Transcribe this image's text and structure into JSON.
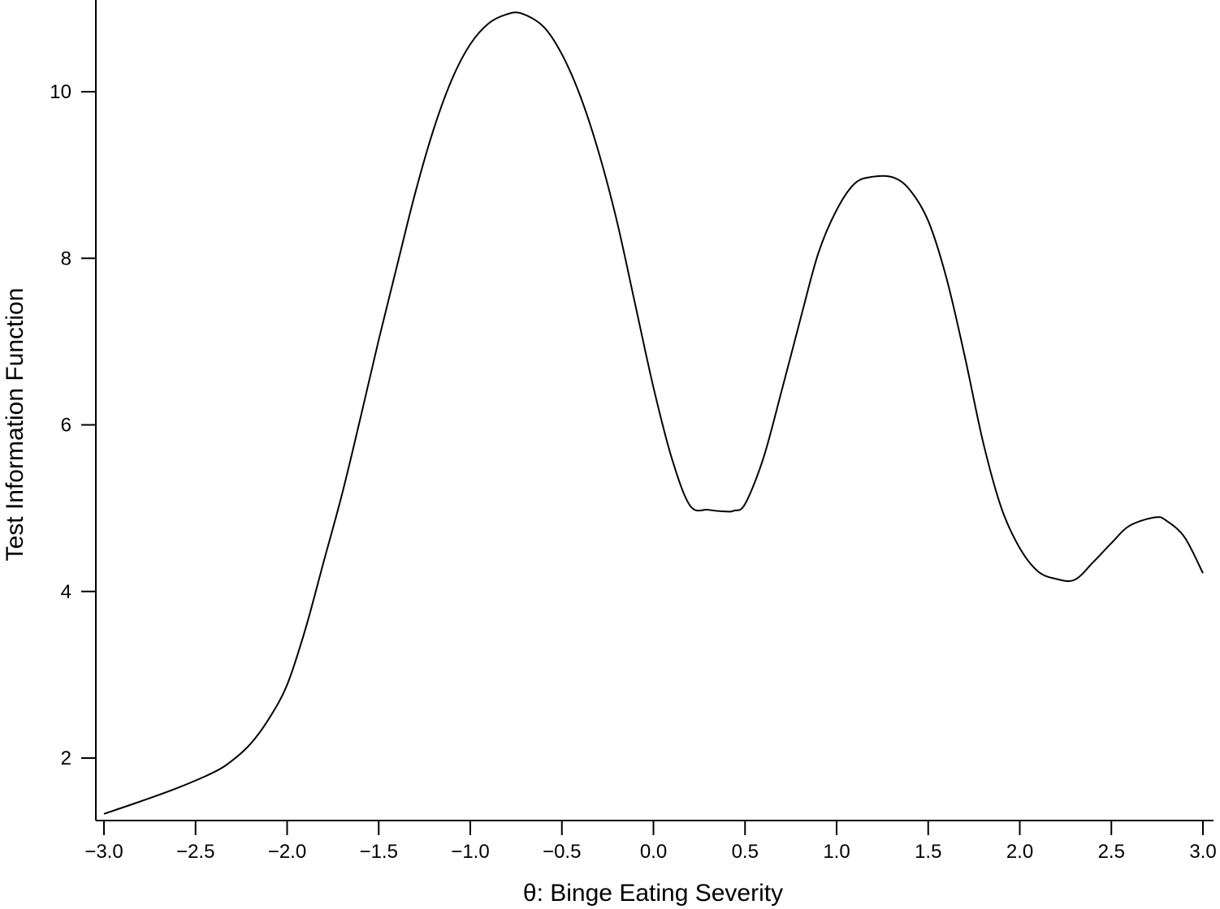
{
  "chart_data": {
    "type": "line",
    "title": "",
    "xlabel": "θ: Binge Eating Severity",
    "ylabel": "Test Information Function",
    "xlim": [
      -3.0,
      3.0
    ],
    "ylim": [
      1.3,
      11.1
    ],
    "grid": false,
    "legend": "none",
    "xticks": [
      -3.0,
      -2.5,
      -2.0,
      -1.5,
      -1.0,
      -0.5,
      0.0,
      0.5,
      1.0,
      1.5,
      2.0,
      2.5,
      3.0
    ],
    "xtick_labels": [
      "−3.0",
      "−2.5",
      "−2.0",
      "−1.5",
      "−1.0",
      "−0.5",
      "0.0",
      "0.5",
      "1.0",
      "1.5",
      "2.0",
      "2.5",
      "3.0"
    ],
    "yticks": [
      2,
      4,
      6,
      8,
      10
    ],
    "ytick_labels": [
      "2",
      "4",
      "6",
      "8",
      "10"
    ],
    "series": [
      {
        "color": "#000000",
        "x": [
          -3.0,
          -2.8,
          -2.6,
          -2.4,
          -2.3,
          -2.2,
          -2.1,
          -2.0,
          -1.9,
          -1.8,
          -1.7,
          -1.6,
          -1.5,
          -1.4,
          -1.3,
          -1.2,
          -1.1,
          -1.0,
          -0.9,
          -0.8,
          -0.72,
          -0.6,
          -0.5,
          -0.4,
          -0.3,
          -0.2,
          -0.1,
          0.0,
          0.1,
          0.2,
          0.3,
          0.4,
          0.44,
          0.5,
          0.6,
          0.7,
          0.8,
          0.9,
          1.0,
          1.1,
          1.2,
          1.31,
          1.4,
          1.5,
          1.6,
          1.7,
          1.8,
          1.9,
          2.0,
          2.1,
          2.2,
          2.3,
          2.4,
          2.5,
          2.6,
          2.74,
          2.8,
          2.9,
          3.0
        ],
        "y": [
          1.33,
          1.48,
          1.64,
          1.83,
          1.97,
          2.17,
          2.47,
          2.88,
          3.55,
          4.36,
          5.17,
          6.08,
          7.02,
          7.91,
          8.79,
          9.55,
          10.15,
          10.57,
          10.82,
          10.93,
          10.94,
          10.78,
          10.45,
          9.95,
          9.28,
          8.45,
          7.45,
          6.45,
          5.6,
          5.03,
          4.98,
          4.96,
          4.97,
          5.05,
          5.6,
          6.41,
          7.25,
          8.06,
          8.58,
          8.9,
          8.98,
          8.97,
          8.82,
          8.45,
          7.76,
          6.82,
          5.79,
          5.0,
          4.52,
          4.24,
          4.15,
          4.14,
          4.35,
          4.58,
          4.79,
          4.89,
          4.85,
          4.65,
          4.22
        ]
      }
    ]
  }
}
